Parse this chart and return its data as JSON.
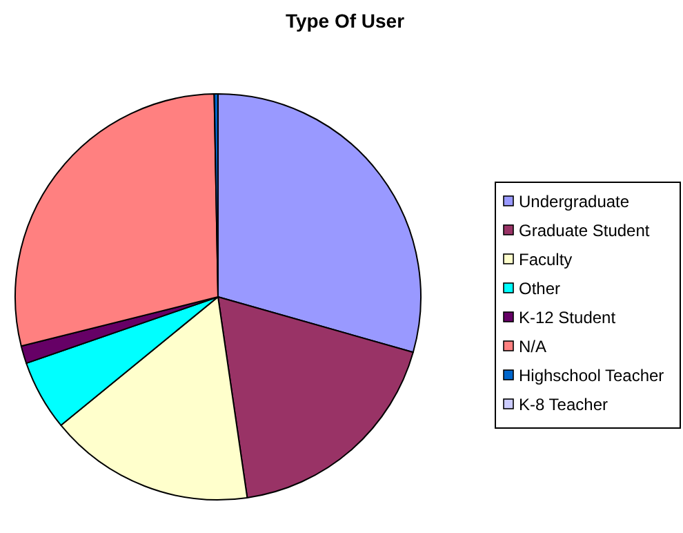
{
  "chart_data": {
    "type": "pie",
    "title": "Type Of User",
    "categories": [
      "Undergraduate",
      "Graduate Student",
      "Faculty",
      "Other",
      "K-12 Student",
      "N/A",
      "Highschool Teacher",
      "K-8 Teacher"
    ],
    "values": [
      29.4,
      18.3,
      16.4,
      5.6,
      1.4,
      28.6,
      0.3,
      0
    ],
    "colors": [
      "#9999ff",
      "#993366",
      "#ffffcc",
      "#00ffff",
      "#660066",
      "#ff8080",
      "#0066cc",
      "#ccccff"
    ],
    "legend": "right"
  }
}
